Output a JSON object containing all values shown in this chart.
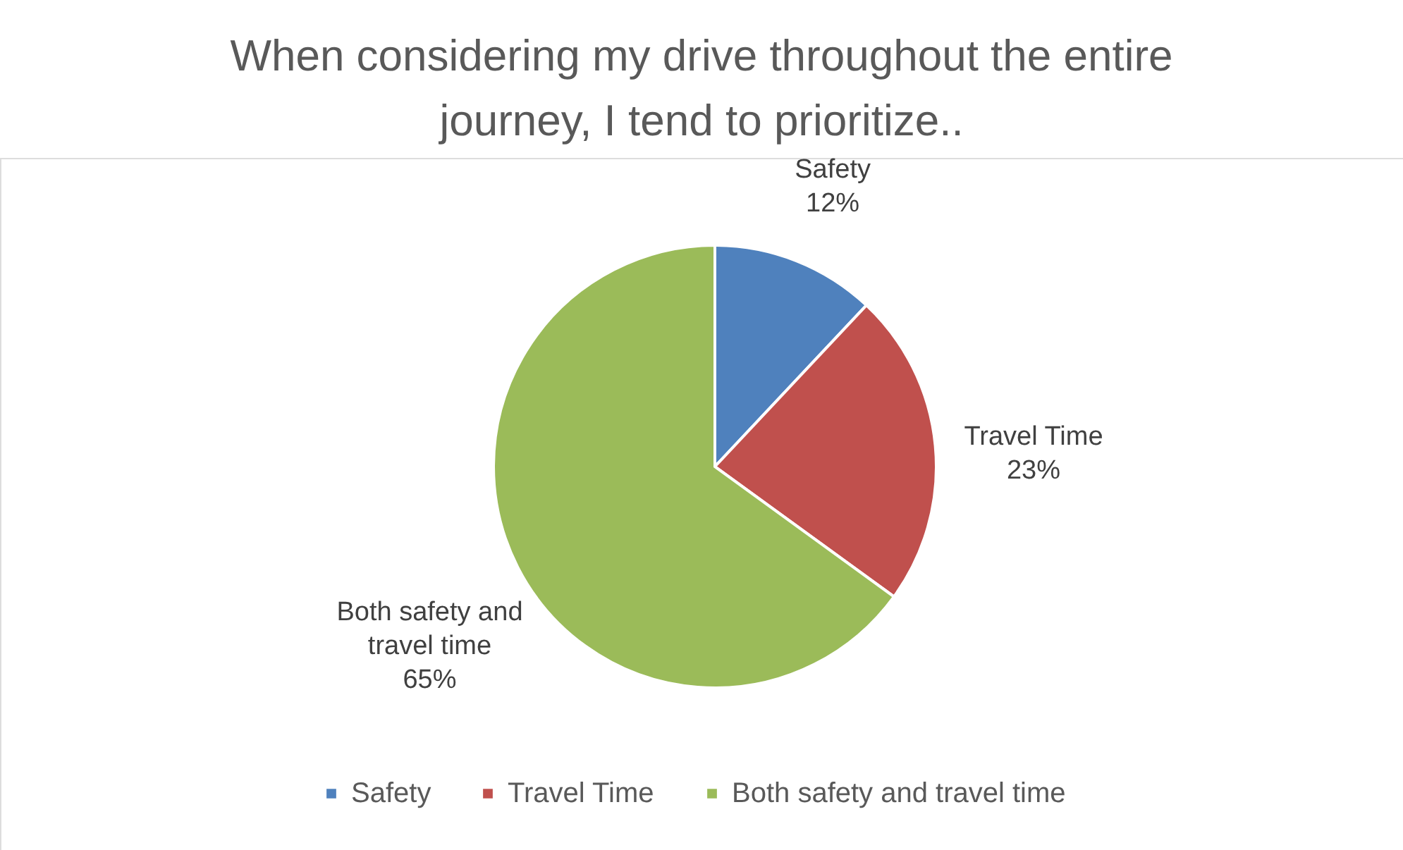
{
  "chart_data": {
    "type": "pie",
    "title": "When considering my drive throughout the entire journey, I tend to prioritize..",
    "categories": [
      "Safety",
      "Travel Time",
      "Both safety and travel time"
    ],
    "values": [
      12,
      23,
      65
    ],
    "colors": [
      "#4f81bd",
      "#c0504d",
      "#9bbb59"
    ],
    "data_labels": true,
    "value_labels": [
      "12%",
      "23%",
      "65%"
    ],
    "legend": "bottom"
  }
}
